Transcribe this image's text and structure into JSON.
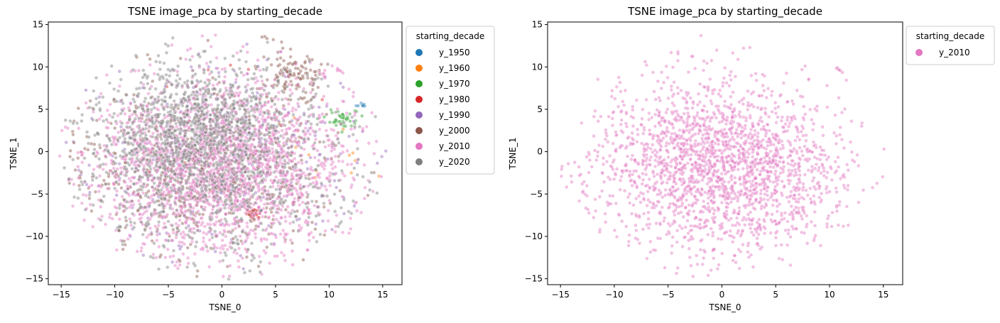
{
  "chart_data": [
    {
      "type": "scatter",
      "title": "TSNE image_pca by starting_decade",
      "xlabel": "TSNE_0",
      "ylabel": "TSNE_1",
      "xlim": [
        -16.2,
        16.8
      ],
      "ylim": [
        -15.7,
        15.3
      ],
      "xticks": [
        -15,
        -10,
        -5,
        0,
        5,
        10,
        15
      ],
      "yticks": [
        -15,
        -10,
        -5,
        0,
        5,
        10,
        15
      ],
      "grid": false,
      "legend": {
        "title": "starting_decade",
        "placement": "outside-upper-right"
      },
      "series": [
        {
          "name": "y_1950",
          "color": "#1f77b4",
          "count": 8,
          "clusters": [
            {
              "cx": 13.3,
              "cy": 5.6,
              "sx": 0.35,
              "sy": 0.2,
              "w": 1
            }
          ]
        },
        {
          "name": "y_1960",
          "color": "#ff7f0e",
          "count": 14,
          "clusters": [
            {
              "cx": 9.0,
              "cy": 1.0,
              "sx": 2.5,
              "sy": 3.0,
              "w": 1
            }
          ]
        },
        {
          "name": "y_1970",
          "color": "#2ca02c",
          "count": 40,
          "clusters": [
            {
              "cx": 11.2,
              "cy": 3.8,
              "sx": 0.8,
              "sy": 0.5,
              "w": 1
            }
          ]
        },
        {
          "name": "y_1980",
          "color": "#d62728",
          "count": 45,
          "clusters": [
            {
              "cx": 3.0,
              "cy": -7.4,
              "sx": 0.3,
              "sy": 0.35,
              "w": 0.5
            },
            {
              "cx": 0.0,
              "cy": 0.0,
              "sx": 6.0,
              "sy": 6.0,
              "w": 0.5
            }
          ]
        },
        {
          "name": "y_1990",
          "color": "#9467bd",
          "count": 380,
          "clusters": [
            {
              "cx": 0.0,
              "cy": -1.0,
              "sx": 6.5,
              "sy": 5.5,
              "w": 1
            }
          ]
        },
        {
          "name": "y_2000",
          "color": "#8c564b",
          "count": 800,
          "clusters": [
            {
              "cx": -2.0,
              "cy": -2.0,
              "sx": 6.0,
              "sy": 5.0,
              "w": 0.75
            },
            {
              "cx": 6.5,
              "cy": 9.0,
              "sx": 1.5,
              "sy": 1.5,
              "w": 0.15
            },
            {
              "cx": 6.0,
              "cy": 14.0,
              "sx": 0.8,
              "sy": 0.3,
              "w": 0.1
            }
          ]
        },
        {
          "name": "y_2010",
          "color": "#e377c2",
          "count": 2300,
          "clusters": [
            {
              "cx": 0.0,
              "cy": -1.5,
              "sx": 5.8,
              "sy": 5.2,
              "w": 0.92
            },
            {
              "cx": 12.2,
              "cy": 10.2,
              "sx": 0.5,
              "sy": 0.3,
              "w": 0.08
            }
          ]
        },
        {
          "name": "y_2020",
          "color": "#7f7f7f",
          "count": 1600,
          "clusters": [
            {
              "cx": -3.0,
              "cy": 2.5,
              "sx": 4.0,
              "sy": 4.0,
              "w": 0.5
            },
            {
              "cx": 0.0,
              "cy": -2.0,
              "sx": 7.0,
              "sy": 6.0,
              "w": 0.5
            }
          ]
        }
      ]
    },
    {
      "type": "scatter",
      "title": "TSNE image_pca by starting_decade",
      "xlabel": "TSNE_0",
      "ylabel": "TSNE_1",
      "xlim": [
        -16.2,
        16.8
      ],
      "ylim": [
        -15.7,
        15.3
      ],
      "xticks": [
        -15,
        -10,
        -5,
        0,
        5,
        10,
        15
      ],
      "yticks": [
        -15,
        -10,
        -5,
        0,
        5,
        10,
        15
      ],
      "grid": false,
      "legend": {
        "title": "starting_decade",
        "placement": "outside-upper-right"
      },
      "series": [
        {
          "name": "y_2010",
          "color": "#e377c2",
          "count": 2300,
          "clusters": [
            {
              "cx": 0.0,
              "cy": -1.5,
              "sx": 5.8,
              "sy": 5.2,
              "w": 0.92
            },
            {
              "cx": 12.2,
              "cy": 10.2,
              "sx": 0.5,
              "sy": 0.3,
              "w": 0.08
            }
          ]
        }
      ]
    }
  ]
}
